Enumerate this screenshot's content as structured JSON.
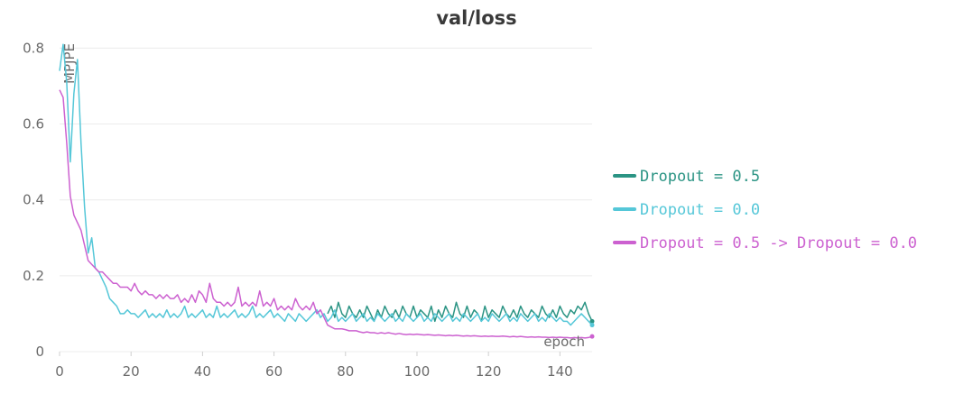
{
  "chart_data": {
    "type": "line",
    "title": "val/loss",
    "xlabel": "epoch",
    "ylabel": "MPJPE",
    "xlim": [
      0,
      149
    ],
    "ylim": [
      0,
      0.82
    ],
    "xticks": [
      0,
      20,
      40,
      60,
      80,
      100,
      120,
      140
    ],
    "yticks": [
      0,
      0.2,
      0.4,
      0.6,
      0.8
    ],
    "yticklabels": [
      "0",
      "0.2",
      "0.4",
      "0.6",
      "0.8"
    ],
    "grid": true,
    "legend_position": "right",
    "series": [
      {
        "name": "Dropout = 0.5",
        "color": "#2b9484",
        "x_start": 75,
        "values": [
          0.1,
          0.12,
          0.09,
          0.13,
          0.1,
          0.09,
          0.12,
          0.1,
          0.09,
          0.11,
          0.09,
          0.12,
          0.1,
          0.08,
          0.11,
          0.09,
          0.12,
          0.1,
          0.09,
          0.11,
          0.09,
          0.12,
          0.1,
          0.09,
          0.12,
          0.09,
          0.11,
          0.1,
          0.09,
          0.12,
          0.08,
          0.11,
          0.09,
          0.12,
          0.1,
          0.09,
          0.13,
          0.1,
          0.09,
          0.12,
          0.09,
          0.11,
          0.1,
          0.08,
          0.12,
          0.09,
          0.11,
          0.1,
          0.09,
          0.12,
          0.1,
          0.09,
          0.11,
          0.09,
          0.12,
          0.1,
          0.09,
          0.11,
          0.1,
          0.09,
          0.12,
          0.1,
          0.09,
          0.11,
          0.09,
          0.12,
          0.1,
          0.09,
          0.11,
          0.1,
          0.12,
          0.11,
          0.13,
          0.1,
          0.08
        ]
      },
      {
        "name": "Dropout = 0.0",
        "color": "#55c7d8",
        "x_start": 0,
        "values": [
          0.74,
          0.81,
          0.71,
          0.5,
          0.68,
          0.77,
          0.55,
          0.38,
          0.26,
          0.3,
          0.22,
          0.21,
          0.19,
          0.17,
          0.14,
          0.13,
          0.12,
          0.1,
          0.1,
          0.11,
          0.1,
          0.1,
          0.09,
          0.1,
          0.11,
          0.09,
          0.1,
          0.09,
          0.1,
          0.09,
          0.11,
          0.09,
          0.1,
          0.09,
          0.1,
          0.12,
          0.09,
          0.1,
          0.09,
          0.1,
          0.11,
          0.09,
          0.1,
          0.09,
          0.12,
          0.09,
          0.1,
          0.09,
          0.1,
          0.11,
          0.09,
          0.1,
          0.09,
          0.1,
          0.12,
          0.09,
          0.1,
          0.09,
          0.1,
          0.11,
          0.09,
          0.1,
          0.09,
          0.08,
          0.1,
          0.09,
          0.08,
          0.1,
          0.09,
          0.08,
          0.09,
          0.1,
          0.11,
          0.09,
          0.1,
          0.08,
          0.09,
          0.11,
          0.08,
          0.09,
          0.08,
          0.09,
          0.1,
          0.08,
          0.09,
          0.1,
          0.08,
          0.09,
          0.08,
          0.1,
          0.09,
          0.08,
          0.09,
          0.1,
          0.08,
          0.09,
          0.08,
          0.1,
          0.09,
          0.08,
          0.09,
          0.1,
          0.08,
          0.09,
          0.08,
          0.1,
          0.09,
          0.08,
          0.09,
          0.1,
          0.08,
          0.09,
          0.08,
          0.1,
          0.09,
          0.08,
          0.09,
          0.1,
          0.08,
          0.09,
          0.08,
          0.1,
          0.09,
          0.08,
          0.09,
          0.1,
          0.08,
          0.09,
          0.08,
          0.1,
          0.09,
          0.08,
          0.09,
          0.1,
          0.08,
          0.09,
          0.08,
          0.1,
          0.09,
          0.08,
          0.09,
          0.08,
          0.08,
          0.07,
          0.08,
          0.09,
          0.1,
          0.09,
          0.08,
          0.07
        ]
      },
      {
        "name": "Dropout = 0.5 -> Dropout = 0.0",
        "color": "#cc61d0",
        "x_start": 0,
        "values": [
          0.69,
          0.67,
          0.55,
          0.41,
          0.36,
          0.34,
          0.32,
          0.28,
          0.24,
          0.23,
          0.22,
          0.21,
          0.21,
          0.2,
          0.19,
          0.18,
          0.18,
          0.17,
          0.17,
          0.17,
          0.16,
          0.18,
          0.16,
          0.15,
          0.16,
          0.15,
          0.15,
          0.14,
          0.15,
          0.14,
          0.15,
          0.14,
          0.14,
          0.15,
          0.13,
          0.14,
          0.13,
          0.15,
          0.13,
          0.16,
          0.15,
          0.13,
          0.18,
          0.14,
          0.13,
          0.13,
          0.12,
          0.13,
          0.12,
          0.13,
          0.17,
          0.12,
          0.13,
          0.12,
          0.13,
          0.12,
          0.16,
          0.12,
          0.13,
          0.12,
          0.14,
          0.11,
          0.12,
          0.11,
          0.12,
          0.11,
          0.14,
          0.12,
          0.11,
          0.12,
          0.11,
          0.13,
          0.1,
          0.11,
          0.09,
          0.07,
          0.065,
          0.06,
          0.06,
          0.06,
          0.058,
          0.055,
          0.055,
          0.055,
          0.052,
          0.05,
          0.052,
          0.05,
          0.05,
          0.048,
          0.05,
          0.048,
          0.05,
          0.048,
          0.046,
          0.048,
          0.046,
          0.045,
          0.046,
          0.045,
          0.046,
          0.045,
          0.044,
          0.045,
          0.044,
          0.043,
          0.044,
          0.043,
          0.042,
          0.043,
          0.042,
          0.043,
          0.042,
          0.041,
          0.042,
          0.041,
          0.042,
          0.041,
          0.04,
          0.041,
          0.04,
          0.041,
          0.04,
          0.04,
          0.041,
          0.04,
          0.039,
          0.04,
          0.039,
          0.04,
          0.039,
          0.038,
          0.039,
          0.038,
          0.039,
          0.038,
          0.038,
          0.037,
          0.038,
          0.037,
          0.038,
          0.037,
          0.037,
          0.036,
          0.037,
          0.036,
          0.037,
          0.036,
          0.037,
          0.04
        ]
      }
    ]
  }
}
